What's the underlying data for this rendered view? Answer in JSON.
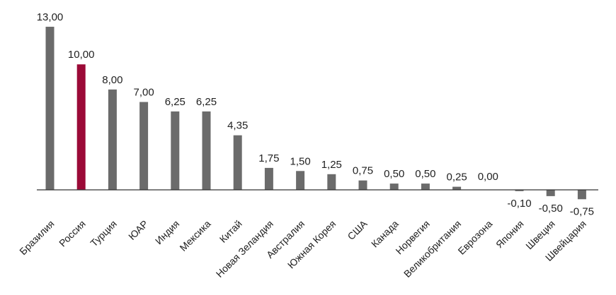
{
  "chart_data": {
    "type": "bar",
    "title": "",
    "xlabel": "",
    "ylabel": "",
    "categories": [
      "Бразилия",
      "Россия",
      "Турция",
      "ЮАР",
      "Индия",
      "Мексика",
      "Китай",
      "Новая Зеландия",
      "Австралия",
      "Южная Корея",
      "США",
      "Канада",
      "Норвегия",
      "Великобритания",
      "Еврозона",
      "Япония",
      "Швеция",
      "Швейцария"
    ],
    "values": [
      13.0,
      10.0,
      8.0,
      7.0,
      6.25,
      6.25,
      4.35,
      1.75,
      1.5,
      1.25,
      0.75,
      0.5,
      0.5,
      0.25,
      0.0,
      -0.1,
      -0.5,
      -0.75
    ],
    "value_labels": [
      "13,00",
      "10,00",
      "8,00",
      "7,00",
      "6,25",
      "6,25",
      "4,35",
      "1,75",
      "1,50",
      "1,25",
      "0,75",
      "0,50",
      "0,50",
      "0,25",
      "0,00",
      "-0,10",
      "-0,50",
      "-0,75"
    ],
    "highlight_index": 1,
    "colors": {
      "bar": "#6b6b6b",
      "highlight": "#9b0a37",
      "axis": "#333333",
      "text": "#222222"
    },
    "ylim": [
      -0.75,
      13.0
    ],
    "grid": false,
    "legend": "none"
  }
}
